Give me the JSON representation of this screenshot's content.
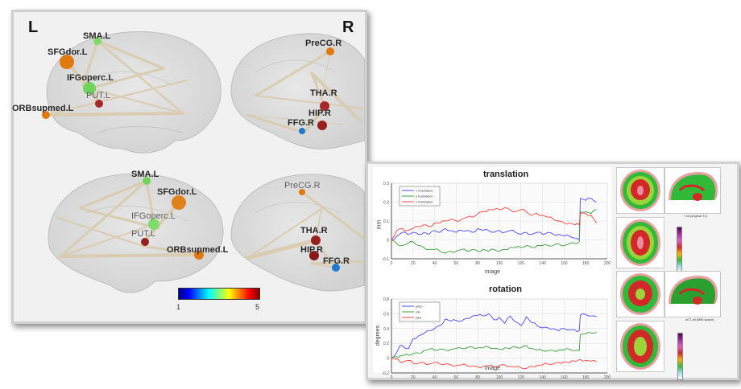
{
  "brain_network": {
    "left_label": "L",
    "right_label": "R",
    "top_left_nodes": [
      {
        "name": "SMA.L",
        "color": "#7fd96a"
      },
      {
        "name": "SFGdor.L",
        "color": "#e07a10"
      },
      {
        "name": "IFGoperc.L",
        "color": "#6fd45a"
      },
      {
        "name": "PUT.L",
        "color": "#a8282a"
      },
      {
        "name": "ORBsupmed.L",
        "color": "#e07a10"
      }
    ],
    "top_right_nodes": [
      {
        "name": "PreCG.R",
        "color": "#e07a10"
      },
      {
        "name": "THA.R",
        "color": "#a8282a"
      },
      {
        "name": "HIP.R",
        "color": "#9a2020"
      },
      {
        "name": "FFG.R",
        "color": "#1e78d0"
      }
    ],
    "bottom_left_nodes": [
      {
        "name": "SMA.L",
        "color": "#6fd45a"
      },
      {
        "name": "SFGdor.L",
        "color": "#e0801a"
      },
      {
        "name": "IFGoperc.L",
        "color": "#7fdc6a"
      },
      {
        "name": "PUT.L",
        "color": "#952020"
      },
      {
        "name": "ORBsupmed.L",
        "color": "#e07a10"
      }
    ],
    "bottom_right_nodes": [
      {
        "name": "PreCG.R",
        "color": "#e07a10"
      },
      {
        "name": "THA.R",
        "color": "#952020"
      },
      {
        "name": "HIP.R",
        "color": "#8a1818"
      },
      {
        "name": "FFG.R",
        "color": "#1e78d0"
      }
    ],
    "colorbar": {
      "min_label": "1",
      "max_label": "5"
    }
  },
  "brain_maps": {
    "caption_1": "*.nii (original T1)",
    "caption_2": "wT1.nii (MNI space)"
  },
  "chart_data": [
    {
      "type": "line",
      "title": "translation",
      "xlabel": "image",
      "ylabel": "mm",
      "xlim": [
        0,
        200
      ],
      "ylim": [
        -0.1,
        0.3
      ],
      "xticks": [
        "0",
        "20",
        "40",
        "60",
        "80",
        "100",
        "120",
        "140",
        "160",
        "180",
        "200"
      ],
      "yticks": [
        "-0.1",
        "0",
        "0.1",
        "0.2",
        "0.3"
      ],
      "grid": true,
      "legend": "top-left",
      "x": [
        0,
        5,
        10,
        15,
        20,
        25,
        30,
        35,
        40,
        45,
        50,
        55,
        60,
        65,
        70,
        75,
        80,
        85,
        90,
        95,
        100,
        105,
        110,
        115,
        120,
        125,
        130,
        135,
        140,
        145,
        150,
        155,
        160,
        165,
        170,
        174,
        175,
        180,
        185,
        190
      ],
      "series": [
        {
          "name": "x translation",
          "color": "#4a4aff",
          "values": [
            0,
            0.02,
            0.04,
            0.03,
            0.04,
            0.03,
            0.04,
            0.03,
            0.05,
            0.04,
            0.06,
            0.05,
            0.04,
            0.05,
            0.05,
            0.04,
            0.06,
            0.05,
            0.05,
            0.04,
            0.05,
            0.04,
            0.05,
            0.04,
            0.03,
            0.04,
            0.03,
            0.04,
            0.03,
            0.04,
            0.03,
            0.03,
            0.02,
            0.02,
            0.01,
            0.0,
            0.22,
            0.21,
            0.22,
            0.2
          ]
        },
        {
          "name": "y translation",
          "color": "#3aa03a",
          "values": [
            0,
            -0.02,
            -0.03,
            -0.02,
            -0.01,
            -0.03,
            -0.04,
            -0.05,
            -0.05,
            -0.06,
            -0.07,
            -0.06,
            -0.06,
            -0.05,
            -0.06,
            -0.05,
            -0.06,
            -0.05,
            -0.06,
            -0.05,
            -0.06,
            -0.05,
            -0.04,
            -0.04,
            -0.04,
            -0.03,
            -0.04,
            -0.03,
            -0.03,
            -0.03,
            -0.03,
            -0.02,
            -0.03,
            -0.02,
            -0.02,
            -0.01,
            0.15,
            0.15,
            0.14,
            0.16
          ]
        },
        {
          "name": "z translation",
          "color": "#ff4040",
          "values": [
            0,
            0.05,
            0.06,
            0.05,
            0.06,
            0.07,
            0.08,
            0.07,
            0.09,
            0.09,
            0.1,
            0.11,
            0.1,
            0.11,
            0.12,
            0.12,
            0.14,
            0.15,
            0.16,
            0.16,
            0.16,
            0.17,
            0.16,
            0.15,
            0.16,
            0.15,
            0.13,
            0.14,
            0.13,
            0.12,
            0.11,
            0.1,
            0.09,
            0.09,
            0.08,
            0.08,
            0.14,
            0.14,
            0.13,
            0.09
          ]
        }
      ]
    },
    {
      "type": "line",
      "title": "rotation",
      "xlabel": "image",
      "ylabel": "degrees",
      "xlim": [
        0,
        200
      ],
      "ylim": [
        -0.2,
        0.8
      ],
      "xticks": [
        "0",
        "20",
        "40",
        "60",
        "80",
        "100",
        "120",
        "140",
        "160",
        "180",
        "200"
      ],
      "yticks": [
        "-0.2",
        "0",
        "0.2",
        "0.4",
        "0.6",
        "0.8"
      ],
      "grid": true,
      "legend": "top-left",
      "x": [
        0,
        5,
        8,
        12,
        16,
        20,
        25,
        30,
        35,
        40,
        45,
        50,
        55,
        60,
        65,
        70,
        75,
        80,
        85,
        90,
        95,
        100,
        105,
        110,
        115,
        120,
        125,
        130,
        135,
        140,
        145,
        150,
        155,
        160,
        165,
        170,
        174,
        175,
        180,
        185,
        190
      ],
      "series": [
        {
          "name": "pitch",
          "color": "#4a4aff",
          "values": [
            0,
            0.08,
            0.17,
            0.14,
            0.13,
            0.26,
            0.3,
            0.33,
            0.37,
            0.4,
            0.44,
            0.53,
            0.5,
            0.51,
            0.5,
            0.54,
            0.57,
            0.58,
            0.57,
            0.6,
            0.52,
            0.55,
            0.47,
            0.57,
            0.49,
            0.44,
            0.56,
            0.48,
            0.44,
            0.41,
            0.41,
            0.4,
            0.37,
            0.4,
            0.38,
            0.38,
            0.37,
            0.58,
            0.59,
            0.57,
            0.56
          ]
        },
        {
          "name": "roll",
          "color": "#3aa03a",
          "values": [
            0,
            0.02,
            0.03,
            0.04,
            0.04,
            0.06,
            0.07,
            0.1,
            0.12,
            0.11,
            0.12,
            0.11,
            0.12,
            0.13,
            0.13,
            0.14,
            0.15,
            0.14,
            0.14,
            0.15,
            0.13,
            0.12,
            0.14,
            0.13,
            0.15,
            0.14,
            0.17,
            0.13,
            0.11,
            0.1,
            0.1,
            0.1,
            0.11,
            0.11,
            0.12,
            0.1,
            0.1,
            0.32,
            0.33,
            0.34,
            0.35
          ]
        },
        {
          "name": "yaw",
          "color": "#ff4040",
          "values": [
            0,
            -0.01,
            -0.05,
            -0.04,
            -0.03,
            -0.07,
            -0.07,
            -0.06,
            -0.08,
            -0.06,
            -0.08,
            -0.08,
            -0.09,
            -0.1,
            -0.09,
            -0.1,
            -0.11,
            -0.12,
            -0.11,
            -0.1,
            -0.12,
            -0.1,
            -0.09,
            -0.11,
            -0.12,
            -0.13,
            -0.14,
            -0.11,
            -0.1,
            -0.09,
            -0.08,
            -0.08,
            -0.06,
            -0.05,
            -0.06,
            -0.04,
            -0.02,
            -0.02,
            -0.03,
            -0.04,
            -0.05
          ]
        }
      ]
    }
  ]
}
